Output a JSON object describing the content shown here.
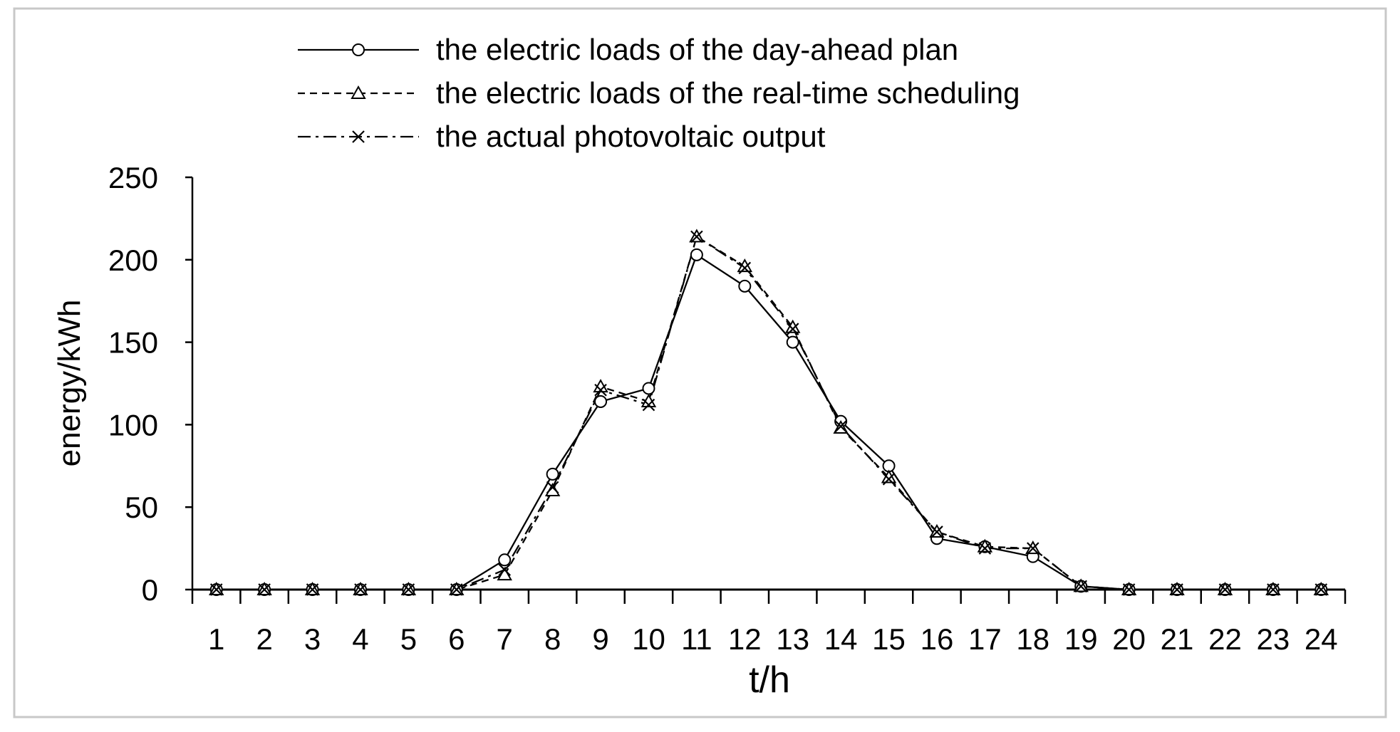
{
  "chart_data": {
    "type": "line",
    "title": "",
    "xlabel": "t/h",
    "ylabel": "energy/kWh",
    "ylim": [
      0,
      250
    ],
    "yticks": [
      "0",
      "50",
      "100",
      "150",
      "200",
      "250"
    ],
    "categories": [
      "1",
      "2",
      "3",
      "4",
      "5",
      "6",
      "7",
      "8",
      "9",
      "10",
      "11",
      "12",
      "13",
      "14",
      "15",
      "16",
      "17",
      "18",
      "19",
      "20",
      "21",
      "22",
      "23",
      "24"
    ],
    "legend_position": "top-center",
    "grid": false,
    "series": [
      {
        "name": "the electric loads of the day-ahead plan",
        "line_style": "solid",
        "marker": "circle",
        "values": [
          0,
          0,
          0,
          0,
          0,
          0,
          18,
          70,
          114,
          122,
          203,
          184,
          150,
          102,
          75,
          31,
          26,
          20,
          2,
          0,
          0,
          0,
          0,
          0
        ]
      },
      {
        "name": "the electric loads of the real-time scheduling",
        "line_style": "dashed",
        "marker": "triangle",
        "values": [
          0,
          0,
          0,
          0,
          0,
          0,
          9,
          60,
          123,
          114,
          214,
          196,
          159,
          98,
          68,
          35,
          26,
          25,
          2,
          0,
          0,
          0,
          0,
          0
        ]
      },
      {
        "name": "the actual photovoltaic output",
        "line_style": "dash-dot",
        "marker": "cross",
        "values": [
          0,
          0,
          0,
          0,
          0,
          0,
          12,
          62,
          121,
          112,
          214,
          195,
          158,
          99,
          67,
          35,
          25,
          25,
          2,
          0,
          0,
          0,
          0,
          0
        ]
      }
    ]
  }
}
